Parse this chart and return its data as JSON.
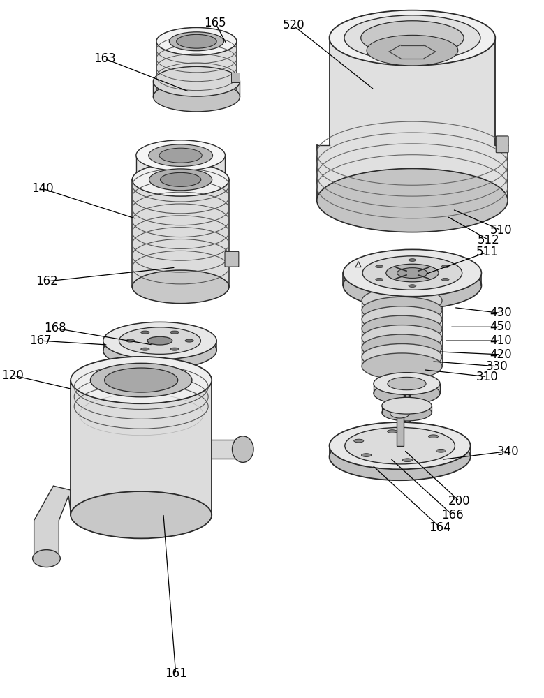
{
  "figure_width": 7.79,
  "figure_height": 10.0,
  "dpi": 100,
  "bg_color": "#ffffff",
  "font_size": 12,
  "font_family": "DejaVu Sans",
  "text_color": "#000000",
  "line_color": "#000000"
}
